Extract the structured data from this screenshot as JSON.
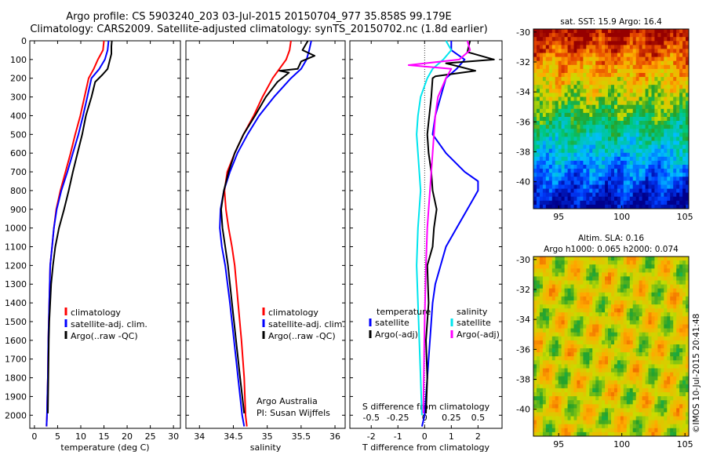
{
  "header": {
    "title_line1": "Argo profile: CS 5903240_203 03-Jul-2015 20150704_977 35.858S 99.179E",
    "title_line2": "Climatology: CARS2009. Satellite-adjusted climatology: synTS_20150702.nc (1.8d earlier)"
  },
  "colors": {
    "climatology": "#ff0000",
    "satellite": "#0000ff",
    "argo": "#000000",
    "sat_salinity": "#00e5ee",
    "argo_salinity": "#ff00ff"
  },
  "chart_data": [
    {
      "type": "line",
      "id": "temperature",
      "xlabel": "temperature (deg C)",
      "xticks": [
        0,
        5,
        10,
        15,
        20,
        25,
        30
      ],
      "xlim": [
        -1,
        31.5
      ],
      "ylim": [
        2070,
        0
      ],
      "yticks": [
        0,
        100,
        200,
        300,
        400,
        500,
        600,
        700,
        800,
        900,
        1000,
        1100,
        1200,
        1300,
        1400,
        1500,
        1600,
        1700,
        1800,
        1900,
        2000
      ],
      "legend": [
        "climatology",
        "satellite-adj. clim.",
        "Argo(..raw -QC)"
      ],
      "series": [
        {
          "key": "climatology",
          "x": [
            15.0,
            14.8,
            13.7,
            12.8,
            11.7,
            10.8,
            9.9,
            8.8,
            7.8,
            6.7,
            5.6,
            4.7,
            4.2,
            3.8,
            3.4,
            3.2,
            3.0,
            2.9,
            2.8,
            2.7,
            2.6
          ],
          "y": [
            0,
            50,
            100,
            150,
            200,
            300,
            400,
            500,
            600,
            700,
            800,
            900,
            1000,
            1100,
            1200,
            1400,
            1600,
            1800,
            1900,
            2000,
            2060
          ]
        },
        {
          "key": "satellite",
          "x": [
            16.0,
            15.8,
            15.2,
            14.0,
            12.3,
            11.4,
            10.5,
            9.5,
            8.3,
            7.1,
            5.8,
            4.8,
            4.2,
            3.8,
            3.4,
            3.2,
            3.0,
            2.9,
            2.8,
            2.7,
            2.6
          ],
          "y": [
            0,
            50,
            100,
            150,
            200,
            300,
            400,
            500,
            600,
            700,
            800,
            900,
            1000,
            1100,
            1200,
            1400,
            1600,
            1800,
            1900,
            2000,
            2060
          ]
        },
        {
          "key": "argo",
          "x": [
            16.7,
            16.6,
            16.6,
            16.2,
            15.8,
            14.7,
            13.1,
            12.3,
            11.1,
            10.3,
            9.3,
            8.3,
            7.4,
            6.4,
            5.3,
            4.5,
            4.0,
            3.6,
            3.4,
            3.2,
            3.1,
            3.0,
            2.9
          ],
          "y": [
            0,
            30,
            70,
            110,
            150,
            180,
            220,
            300,
            400,
            500,
            600,
            700,
            800,
            900,
            1000,
            1100,
            1200,
            1300,
            1400,
            1500,
            1600,
            1800,
            1990
          ]
        }
      ]
    },
    {
      "type": "line",
      "id": "salinity",
      "xlabel": "salinity",
      "xticks": [
        34,
        34.5,
        35,
        35.5,
        36
      ],
      "xlim": [
        33.8,
        36.15
      ],
      "ylim": [
        2070,
        0
      ],
      "legend": [
        "climatology",
        "satellite-adj. clim.",
        "Argo(..raw -QC)"
      ],
      "annotations": [
        "Argo Australia",
        "PI: Susan Wijffels"
      ],
      "series": [
        {
          "key": "climatology",
          "x": [
            35.35,
            35.33,
            35.28,
            35.18,
            35.08,
            34.93,
            34.8,
            34.65,
            34.52,
            34.41,
            34.37,
            34.39,
            34.43,
            34.48,
            34.52,
            34.57,
            34.62,
            34.66,
            34.68,
            34.7
          ],
          "y": [
            0,
            50,
            100,
            150,
            200,
            300,
            400,
            500,
            600,
            700,
            800,
            900,
            1000,
            1100,
            1200,
            1400,
            1600,
            1800,
            2000,
            2060
          ]
        },
        {
          "key": "satellite",
          "x": [
            35.65,
            35.62,
            35.58,
            35.5,
            35.35,
            35.1,
            34.88,
            34.71,
            34.56,
            34.45,
            34.36,
            34.31,
            34.3,
            34.33,
            34.38,
            34.45,
            34.51,
            34.57,
            34.63,
            34.66
          ],
          "y": [
            0,
            50,
            100,
            150,
            200,
            300,
            400,
            500,
            600,
            700,
            800,
            900,
            1000,
            1100,
            1200,
            1400,
            1600,
            1800,
            2000,
            2060
          ]
        },
        {
          "key": "argo",
          "x": [
            35.6,
            35.52,
            35.7,
            35.5,
            35.45,
            35.18,
            35.32,
            35.15,
            34.98,
            34.82,
            34.65,
            34.52,
            34.43,
            34.36,
            34.32,
            34.34,
            34.38,
            34.42,
            34.48,
            34.54,
            34.6,
            34.66
          ],
          "y": [
            0,
            50,
            80,
            110,
            150,
            160,
            170,
            220,
            300,
            400,
            500,
            600,
            700,
            800,
            900,
            1000,
            1100,
            1200,
            1400,
            1600,
            1800,
            1990
          ]
        }
      ]
    },
    {
      "type": "line",
      "id": "difference",
      "xlabel": "T difference from climatology",
      "xlabel_top": "S difference from climatology",
      "xticks": [
        -2,
        -1,
        0,
        1,
        2
      ],
      "xticks_top": [
        "-0.5",
        "-0.25",
        "0",
        "0.25",
        "0.5"
      ],
      "xlim": [
        -2.8,
        2.9
      ],
      "ylim": [
        2070,
        0
      ],
      "legend_title_t": "temperature",
      "legend_title_s": "salinity",
      "legend": [
        "satellite",
        "Argo(-adj)",
        "satellite",
        "Argo(-adj)"
      ],
      "series": [
        {
          "key": "satellite",
          "x": [
            1.0,
            1.0,
            1.5,
            1.2,
            0.8,
            0.6,
            0.4,
            0.3,
            0.8,
            1.5,
            2.0,
            2.0,
            1.6,
            1.2,
            0.8,
            0.6,
            0.4,
            0.3,
            0.2,
            0.1,
            0.0,
            -0.1
          ],
          "y": [
            0,
            50,
            100,
            150,
            200,
            300,
            400,
            500,
            600,
            700,
            750,
            800,
            900,
            1000,
            1100,
            1200,
            1300,
            1400,
            1600,
            1800,
            2000,
            2060
          ]
        },
        {
          "key": "argo",
          "x": [
            1.7,
            1.6,
            2.6,
            0.8,
            1.9,
            0.4,
            0.3,
            0.25,
            0.1,
            0.15,
            0.25,
            0.3,
            0.45,
            0.35,
            0.3,
            0.1,
            0.15,
            0.05,
            0.1,
            0.05
          ],
          "y": [
            0,
            60,
            100,
            120,
            160,
            190,
            200,
            300,
            500,
            600,
            700,
            800,
            900,
            1000,
            1100,
            1200,
            1400,
            1600,
            1800,
            1990
          ]
        },
        {
          "key": "sat_salinity",
          "x": [
            0.8,
            1.0,
            0.7,
            0.3,
            0.1,
            -0.15,
            -0.25,
            -0.3,
            -0.25,
            -0.2,
            -0.15,
            -0.2,
            -0.25,
            -0.3,
            -0.25,
            -0.2,
            -0.15,
            -0.1
          ],
          "y": [
            0,
            50,
            100,
            150,
            200,
            300,
            400,
            500,
            600,
            700,
            800,
            900,
            1000,
            1200,
            1400,
            1600,
            1800,
            2000
          ]
        },
        {
          "key": "argo_salinity",
          "x": [
            1.6,
            1.7,
            1.3,
            -0.6,
            1.0,
            0.8,
            0.5,
            0.4,
            0.35,
            0.3,
            0.25,
            0.2,
            0.1,
            0.05,
            0.0,
            -0.05
          ],
          "y": [
            0,
            50,
            100,
            130,
            150,
            200,
            300,
            400,
            500,
            600,
            700,
            800,
            1000,
            1200,
            1500,
            1990
          ]
        }
      ]
    },
    {
      "type": "heatmap",
      "id": "sst_map",
      "title": "sat. SST: 15.9 Argo: 16.4",
      "xticks": [
        95,
        100,
        105
      ],
      "yticks": [
        -30,
        -32,
        -34,
        -36,
        -38,
        -40
      ],
      "xlim": [
        93,
        105.3
      ],
      "ylim": [
        -41.8,
        -29.8
      ]
    },
    {
      "type": "heatmap",
      "id": "sla_map",
      "title_line1": "Altim. SLA: 0.16",
      "title_line2": "Argo h1000: 0.065 h2000: 0.074",
      "xticks": [
        95,
        100,
        105
      ],
      "yticks": [
        -30,
        -32,
        -34,
        -36,
        -38,
        -40
      ],
      "xlim": [
        93,
        105.3
      ],
      "ylim": [
        -41.8,
        -29.8
      ]
    }
  ],
  "watermark": "©IMOS 10-Jul-2015 20:41:48"
}
